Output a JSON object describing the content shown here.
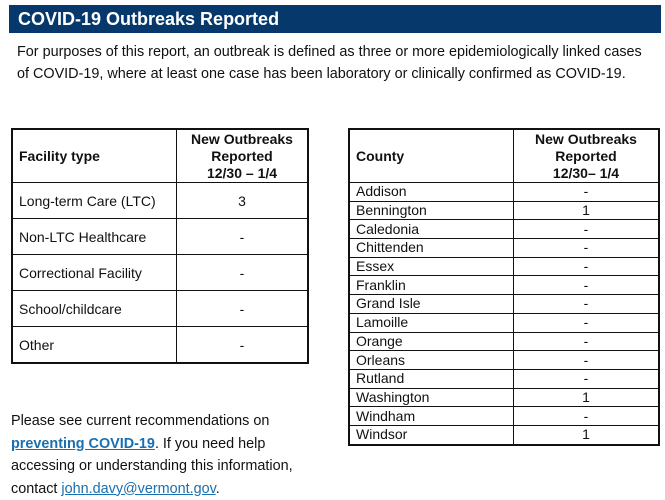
{
  "title": "COVID-19 Outbreaks Reported",
  "intro": "For purposes of this report, an outbreak is defined as three or more epidemiologically linked cases of COVID-19, where at least one case has been laboratory or clinically confirmed as COVID-19.",
  "facility_table": {
    "header_label": "Facility type",
    "header_value_line1": "New Outbreaks",
    "header_value_line2": "Reported",
    "header_value_line3": "12/30 – 1/4",
    "rows": [
      {
        "label": "Long-term Care (LTC)",
        "value": "3"
      },
      {
        "label": "Non-LTC Healthcare",
        "value": "-"
      },
      {
        "label": "Correctional Facility",
        "value": "-"
      },
      {
        "label": "School/childcare",
        "value": "-"
      },
      {
        "label": "Other",
        "value": "-"
      }
    ]
  },
  "county_table": {
    "header_label": "County",
    "header_value_line1": "New Outbreaks",
    "header_value_line2": "Reported",
    "header_value_line3": "12/30– 1/4",
    "rows": [
      {
        "label": "Addison",
        "value": "-"
      },
      {
        "label": "Bennington",
        "value": "1"
      },
      {
        "label": "Caledonia",
        "value": "-"
      },
      {
        "label": "Chittenden",
        "value": "-"
      },
      {
        "label": "Essex",
        "value": "-"
      },
      {
        "label": "Franklin",
        "value": "-"
      },
      {
        "label": "Grand Isle",
        "value": "-"
      },
      {
        "label": "Lamoille",
        "value": "-"
      },
      {
        "label": "Orange",
        "value": "-"
      },
      {
        "label": "Orleans",
        "value": "-"
      },
      {
        "label": "Rutland",
        "value": "-"
      },
      {
        "label": "Washington",
        "value": "1"
      },
      {
        "label": "Windham",
        "value": "-"
      },
      {
        "label": "Windsor",
        "value": "1"
      }
    ]
  },
  "footer": {
    "text_before": "Please see current recommendations on ",
    "link_text": "preventing COVID-19",
    "text_middle": ". If you need help accessing or understanding this information, contact ",
    "email": "john.davy@vermont.gov",
    "text_after": "."
  }
}
